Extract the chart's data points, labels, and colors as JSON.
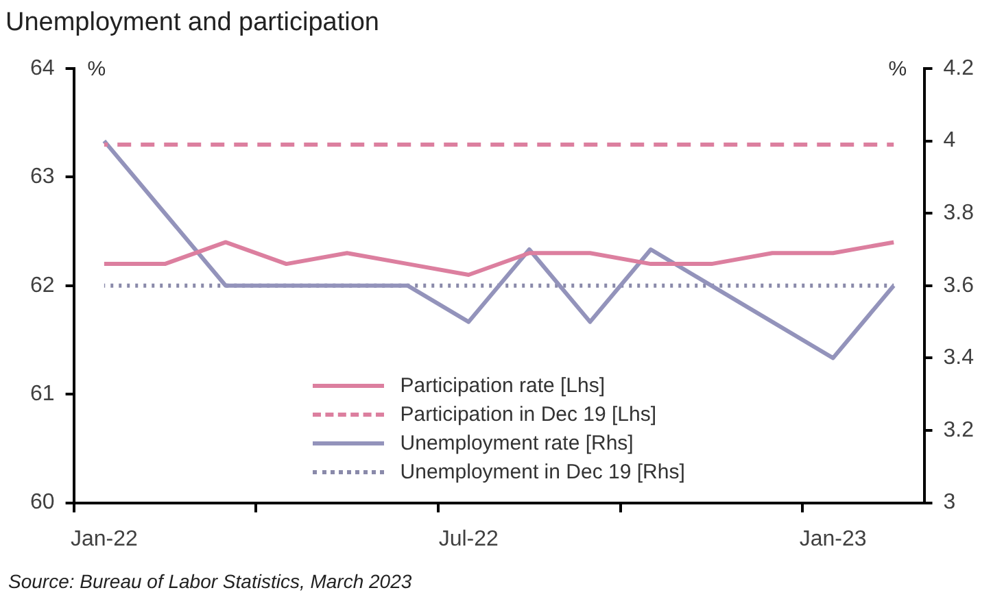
{
  "chart_data": {
    "type": "line",
    "title": "Unemployment and participation",
    "categories": [
      "Jan-22",
      null,
      null,
      null,
      null,
      null,
      "Jul-22",
      null,
      null,
      null,
      null,
      null,
      "Jan-23",
      null
    ],
    "series": [
      {
        "name": "Participation rate [Lhs]",
        "color": "#dc7f9f",
        "values": [
          62.2,
          62.2,
          62.4,
          62.2,
          62.3,
          62.2,
          62.1,
          62.3,
          62.3,
          62.2,
          62.2,
          62.3,
          62.3,
          62.4
        ],
        "line_style": "solid"
      },
      {
        "name": "Participation in Dec 19 [Lhs]",
        "color": "#dc7f9f",
        "values": [
          63.3,
          63.3,
          63.3,
          63.3,
          63.3,
          63.3,
          63.3,
          63.3,
          63.3,
          63.3,
          63.3,
          63.3,
          63.3,
          63.3
        ],
        "line_style": "dashed"
      },
      {
        "name": "Unemployment rate [Rhs]",
        "color": "#9393bb",
        "values": [
          4.0,
          3.8,
          3.6,
          3.6,
          3.6,
          3.6,
          3.5,
          3.7,
          3.5,
          3.7,
          3.6,
          3.5,
          3.4,
          3.6
        ],
        "axis": "y2",
        "line_style": "solid"
      },
      {
        "name": "Unemployment in Dec 19 [Rhs]",
        "color": "#8a8aaa",
        "values": [
          3.6,
          3.6,
          3.6,
          3.6,
          3.6,
          3.6,
          3.6,
          3.6,
          3.6,
          3.6,
          3.6,
          3.6,
          3.6,
          3.6
        ],
        "axis": "y2",
        "line_style": "dotted"
      }
    ],
    "ylabel": "%",
    "y2label": "%",
    "ylim": [
      60,
      64
    ],
    "yticks": [
      60,
      61,
      62,
      63,
      64
    ],
    "y2lim": [
      3,
      4.2
    ],
    "y2ticks": [
      3,
      3.2,
      3.4,
      3.6,
      3.8,
      4,
      4.2
    ],
    "grid": false,
    "legend": "bottom",
    "marker": "none",
    "annotations": [
      "Source: Bureau of Labor Statistics, March 2023"
    ]
  }
}
